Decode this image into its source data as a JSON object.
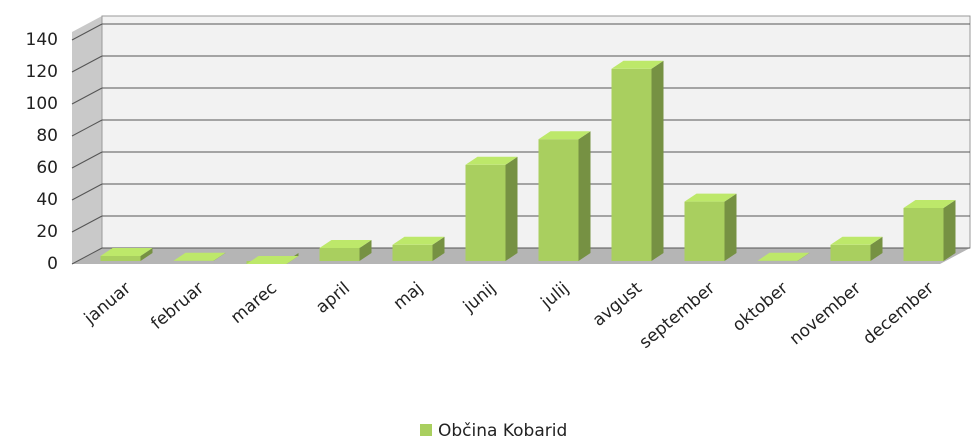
{
  "chart_data": {
    "type": "bar3d",
    "categories": [
      "januar",
      "februar",
      "marec",
      "april",
      "maj",
      "junij",
      "julij",
      "avgust",
      "september",
      "oktober",
      "november",
      "december"
    ],
    "series": [
      {
        "name": "Občina Kobarid",
        "color": "#a9cf5f",
        "values": [
          5,
          2,
          0,
          10,
          12,
          62,
          78,
          122,
          39,
          2,
          12,
          35
        ]
      }
    ],
    "ylim": [
      0,
      140
    ],
    "yticks": [
      0,
      20,
      40,
      60,
      80,
      100,
      120,
      140
    ],
    "grid": true,
    "legend": "bottom"
  }
}
